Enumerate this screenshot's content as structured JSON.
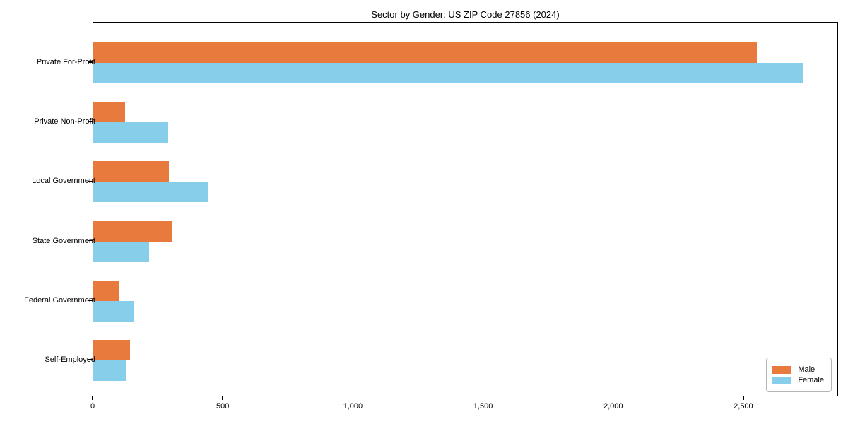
{
  "title": "Sector by Gender: US ZIP Code 27856 (2024)",
  "chart_data": {
    "type": "bar",
    "orientation": "horizontal",
    "title": "Sector by Gender: US ZIP Code 27856 (2024)",
    "categories": [
      "Private For-Profit",
      "Private Non-Profit",
      "Local Government",
      "State Government",
      "Federal Government",
      "Self-Employed"
    ],
    "series": [
      {
        "name": "Male",
        "color": "#e87a3e",
        "values": [
          2550,
          122,
          290,
          302,
          97,
          141
        ]
      },
      {
        "name": "Female",
        "color": "#87ceeb",
        "values": [
          2728,
          288,
          443,
          215,
          158,
          125
        ]
      }
    ],
    "xlabel": "",
    "ylabel": "",
    "xlim": [
      0,
      2864
    ],
    "x_ticks": [
      0,
      500,
      1000,
      1500,
      2000,
      2500
    ],
    "x_tick_labels": [
      "0",
      "500",
      "1,000",
      "1,500",
      "2,000",
      "2,500"
    ],
    "grid": false,
    "frame": true,
    "legend": {
      "position": "lower right",
      "items": [
        {
          "label": "Male",
          "color": "#e87a3e"
        },
        {
          "label": "Female",
          "color": "#87ceeb"
        }
      ]
    }
  }
}
